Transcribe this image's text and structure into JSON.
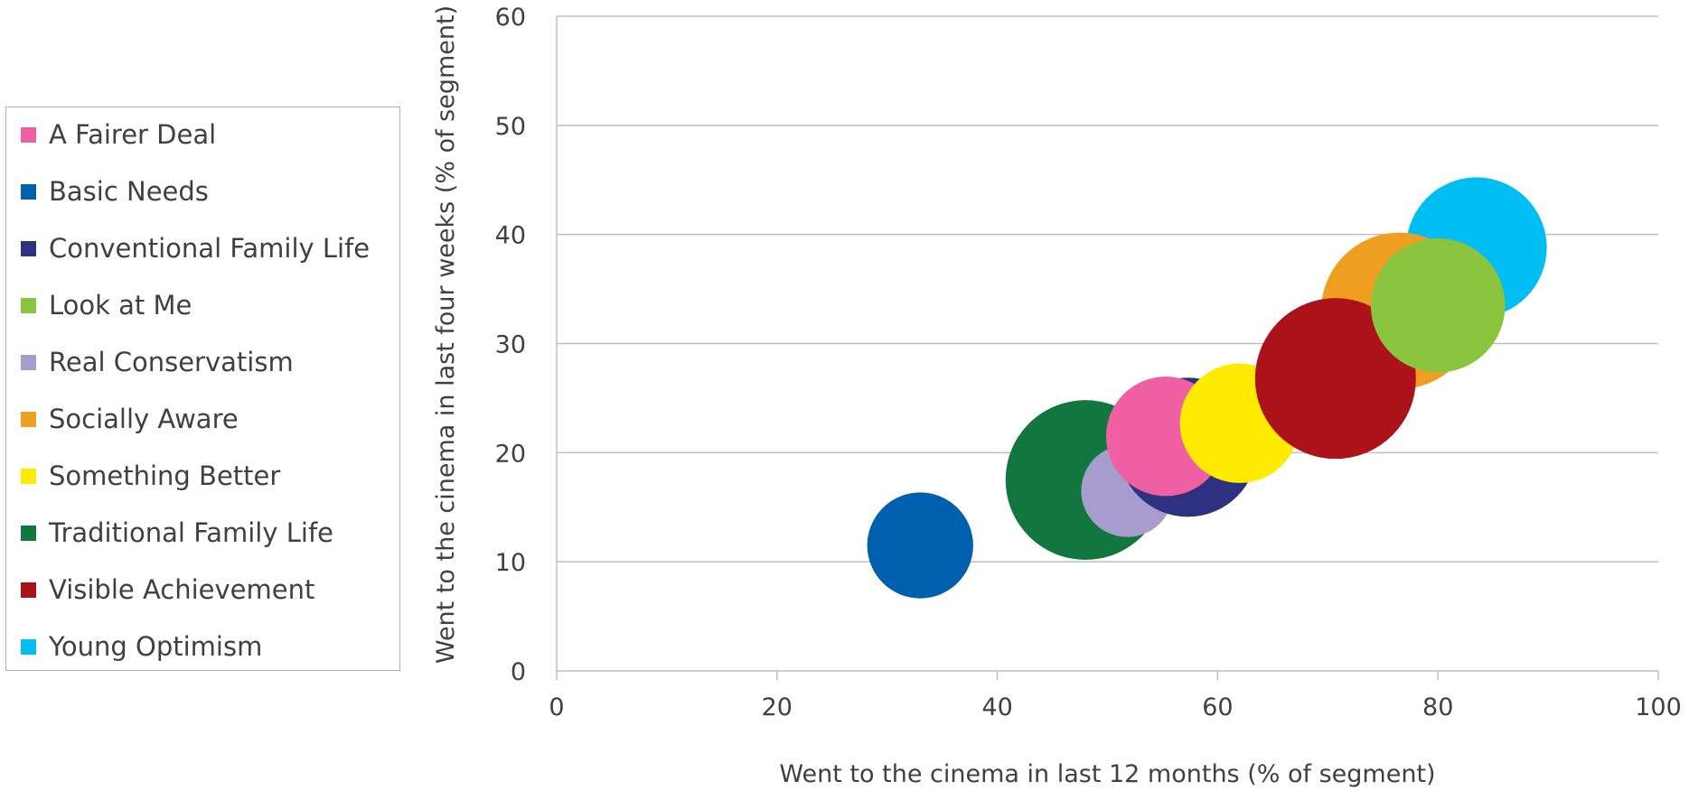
{
  "chart_data": {
    "type": "scatter",
    "subtype": "bubble",
    "title": "",
    "xlabel": "Went to the cinema in last 12 months (% of segment)",
    "ylabel": "Went to the cinema in last four weeks (% of segment)",
    "xlim": [
      0,
      100
    ],
    "ylim": [
      0,
      60
    ],
    "xticks": [
      "0",
      "20",
      "40",
      "60",
      "80",
      "100"
    ],
    "yticks": [
      "0",
      "10",
      "20",
      "30",
      "40",
      "50",
      "60"
    ],
    "grid": "horizontal",
    "legend_position": "left",
    "series": [
      {
        "name": "Traditional Family Life",
        "color": "#12773f",
        "x": 48.0,
        "y": 17.5,
        "size": 7.5
      },
      {
        "name": "Basic Needs",
        "color": "#0060ae",
        "x": 33.0,
        "y": 11.5,
        "size": 3.3
      },
      {
        "name": "Real Conservatism",
        "color": "#a69dce",
        "x": 51.8,
        "y": 16.5,
        "size": 2.5
      },
      {
        "name": "Conventional Family Life",
        "color": "#2e3080",
        "x": 57.3,
        "y": 20.5,
        "size": 5.7
      },
      {
        "name": "A Fairer Deal",
        "color": "#ee5fa3",
        "x": 55.3,
        "y": 21.5,
        "size": 4.2
      },
      {
        "name": "Something Better",
        "color": "#ffea00",
        "x": 62.0,
        "y": 22.7,
        "size": 4.2
      },
      {
        "name": "Young Optimism",
        "color": "#00bdf2",
        "x": 83.5,
        "y": 38.8,
        "size": 5.8
      },
      {
        "name": "Socially Aware",
        "color": "#ef9e21",
        "x": 76.5,
        "y": 33.0,
        "size": 7.2
      },
      {
        "name": "Visible Achievement",
        "color": "#ab1219",
        "x": 70.7,
        "y": 26.8,
        "size": 7.6
      },
      {
        "name": "Look at Me",
        "color": "#8bc53f",
        "x": 80.0,
        "y": 33.5,
        "size": 5.3
      }
    ],
    "legend": [
      {
        "name": "A Fairer Deal",
        "color": "#ee5fa3"
      },
      {
        "name": "Basic Needs",
        "color": "#0060ae"
      },
      {
        "name": "Conventional Family Life",
        "color": "#2e3080"
      },
      {
        "name": "Look at Me",
        "color": "#8bc53f"
      },
      {
        "name": "Real Conservatism",
        "color": "#a69dce"
      },
      {
        "name": "Socially Aware",
        "color": "#ef9e21"
      },
      {
        "name": "Something Better",
        "color": "#ffea00"
      },
      {
        "name": "Traditional Family Life",
        "color": "#12773f"
      },
      {
        "name": "Visible Achievement",
        "color": "#ab1219"
      },
      {
        "name": "Young Optimism",
        "color": "#00bdf2"
      }
    ]
  }
}
